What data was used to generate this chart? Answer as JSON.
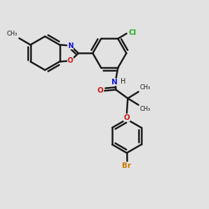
{
  "bg_color": "#e2e2e2",
  "bond_color": "#1a1a1a",
  "bond_width": 1.8,
  "figsize": [
    3.0,
    3.0
  ],
  "dpi": 100,
  "N_color": "#1515cc",
  "O_color": "#cc1515",
  "Cl_color": "#22aa22",
  "Br_color": "#cc7700",
  "xlim": [
    0,
    10
  ],
  "ylim": [
    0,
    10
  ]
}
